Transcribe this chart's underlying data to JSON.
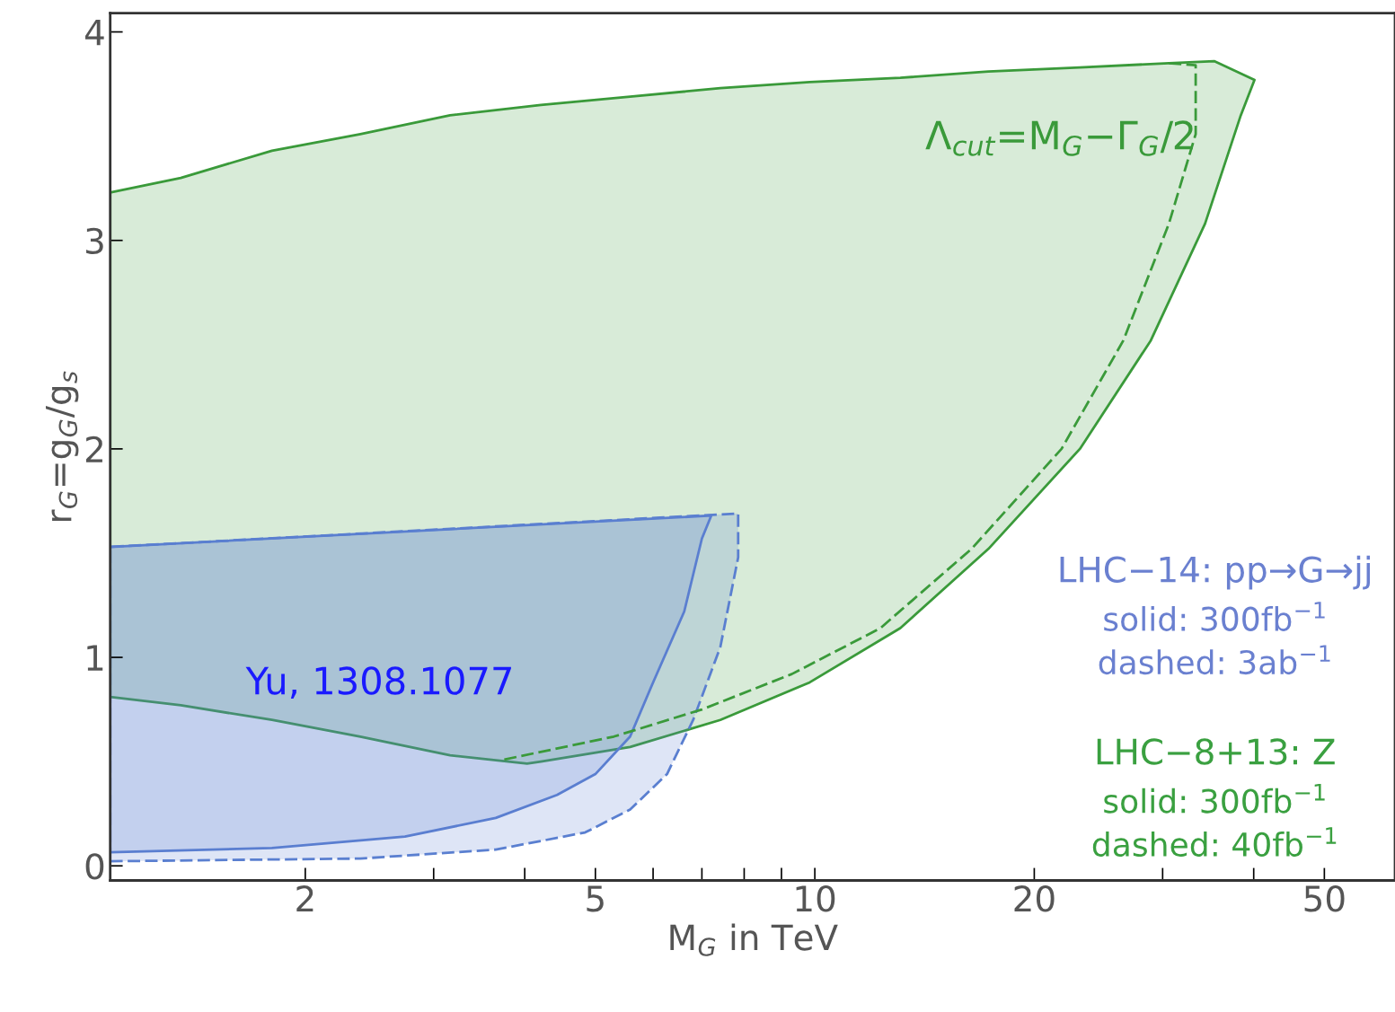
{
  "chart_data": {
    "type": "area",
    "xlabel": "M$_{G}$ in TeV",
    "ylabel": "r$_{G}$=g$_{G}$/g$_{s}$",
    "log": "x",
    "xlim": [
      1.08,
      62.5
    ],
    "ylim": [
      -0.07,
      4.09
    ],
    "xticks": [
      2,
      {
        "value": 3,
        "label": null
      },
      {
        "value": 4,
        "label": null
      },
      5,
      {
        "value": 6,
        "label": null
      },
      {
        "value": 7,
        "label": null
      },
      {
        "value": 8,
        "label": null
      },
      {
        "value": 9,
        "label": null
      },
      10,
      20,
      {
        "value": 30,
        "label": null
      },
      {
        "value": 40,
        "label": null
      },
      50
    ],
    "yticks": [
      0,
      1,
      2,
      3,
      4
    ],
    "grid": false,
    "legend": false,
    "series": [
      {
        "color": "#3a9a3a",
        "line_style": "solid",
        "x": [
          1.08,
          1.35,
          1.8,
          2.38,
          3.16,
          4.21,
          5.58,
          7.42,
          9.84,
          13.1,
          17.3,
          23.1,
          30.6,
          35.3,
          40.1,
          38.4,
          34.3,
          28.9,
          23.1,
          17.3,
          13.1,
          9.84,
          7.42,
          5.58,
          4.21,
          4.03,
          3.16,
          2.38,
          1.8,
          1.35,
          1.08
        ],
        "values": [
          3.23,
          3.3,
          3.43,
          3.51,
          3.6,
          3.65,
          3.69,
          3.73,
          3.76,
          3.78,
          3.81,
          3.83,
          3.85,
          3.86,
          3.77,
          3.6,
          3.08,
          2.52,
          2.0,
          1.52,
          1.14,
          0.88,
          0.7,
          0.57,
          0.5,
          0.49,
          0.53,
          0.62,
          0.7,
          0.77,
          0.81
        ]
      },
      {
        "type": "line",
        "color": "#3a9a3a",
        "line_style": "dashed",
        "x": [
          30.6,
          33.3,
          33.3,
          30.6,
          26.5,
          21.8,
          16.4,
          12.3,
          9.3,
          7.0,
          5.3,
          3.75
        ],
        "values": [
          3.85,
          3.84,
          3.51,
          3.08,
          2.52,
          2.0,
          1.52,
          1.14,
          0.92,
          0.75,
          0.62,
          0.51
        ]
      },
      {
        "color": "#5a7fd0",
        "line_style": "solid",
        "x": [
          1.08,
          1.8,
          2.74,
          3.65,
          4.43,
          5.0,
          5.58,
          6.0,
          6.62,
          7.0,
          7.21,
          1.08
        ],
        "values": [
          0.065,
          0.086,
          0.14,
          0.23,
          0.34,
          0.44,
          0.62,
          0.88,
          1.22,
          1.57,
          1.68,
          1.53
        ]
      },
      {
        "color": "#5a7fd0",
        "line_style": "dashed",
        "x": [
          1.08,
          2.38,
          3.65,
          4.84,
          5.58,
          6.27,
          6.81,
          7.42,
          7.85,
          7.85,
          1.08
        ],
        "values": [
          0.022,
          0.035,
          0.078,
          0.16,
          0.27,
          0.44,
          0.7,
          1.05,
          1.48,
          1.69,
          1.53
        ]
      }
    ],
    "annotations": [
      "Λ$_{cut}$=M$_{G}$−Γ$_{G}$/2",
      "LHC−14: pp→G→jj",
      "solid: 300fb$^{−1}$",
      "dashed: 3ab$^{−1}$",
      "LHC−8+13: Z",
      "solid: 300fb$^{−1}$",
      "dashed: 40fb$^{−1}$",
      "Yu, 1308.1077"
    ]
  }
}
